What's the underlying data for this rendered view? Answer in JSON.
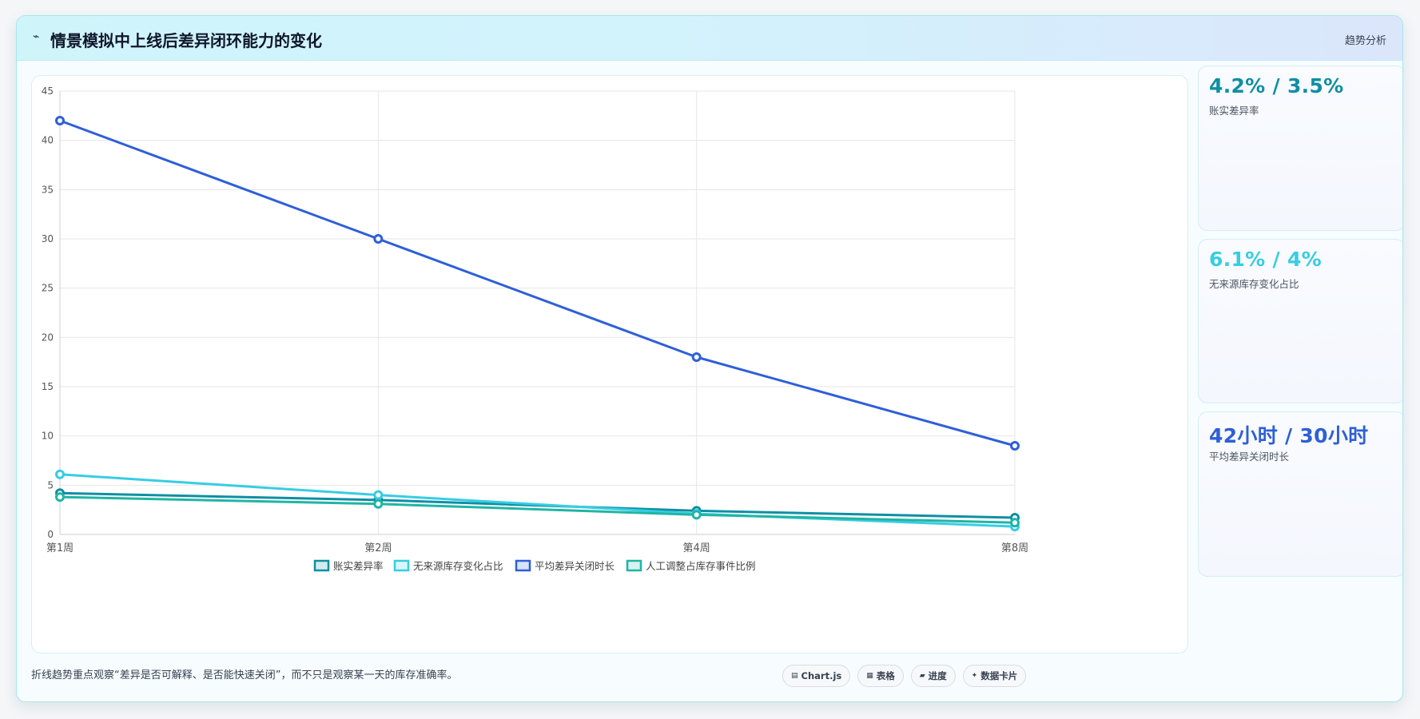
{
  "header": {
    "icon": "trend-icon",
    "icon_glyph": "⌁",
    "title": "情景模拟中上线后差异闭环能力的变化",
    "tag": "趋势分析"
  },
  "chart_data": {
    "type": "line",
    "title": "",
    "xlabel": "",
    "ylabel": "",
    "categories": [
      "第1周",
      "第2周",
      "第4周",
      "第8周"
    ],
    "ylim": [
      0,
      45
    ],
    "yticks": [
      0,
      5,
      10,
      15,
      20,
      25,
      30,
      35,
      40,
      45
    ],
    "grid": true,
    "legend_position": "bottom",
    "series": [
      {
        "name": "账实差异率",
        "values": [
          4.2,
          3.5,
          2.4,
          1.7
        ],
        "color": "#0e8fa3"
      },
      {
        "name": "无来源库存变化占比",
        "values": [
          6.1,
          4.0,
          2.1,
          0.8
        ],
        "color": "#37cde3"
      },
      {
        "name": "平均差异关闭时长",
        "values": [
          42,
          30,
          18,
          9
        ],
        "color": "#2e5fd9"
      },
      {
        "name": "人工调整占库存事件比例",
        "values": [
          3.8,
          3.1,
          2.0,
          1.2
        ],
        "color": "#1fb5a5"
      }
    ]
  },
  "stats": [
    {
      "value": "4.2% / 3.5%",
      "label": "账实差异率",
      "color": "#0e8fa3"
    },
    {
      "value": "6.1% / 4%",
      "label": "无来源库存变化占比",
      "color": "#37cde3"
    },
    {
      "value": "42小时 / 30小时",
      "label": "平均差异关闭时长",
      "color": "#2e5fd9"
    }
  ],
  "footer": {
    "note": "折线趋势重点观察“差异是否可解释、是否能快速关闭”，而不只是观察某一天的库存准确率。",
    "chips": [
      {
        "icon": "chart-icon",
        "glyph": "▤",
        "label": "Chart.js"
      },
      {
        "icon": "table-icon",
        "glyph": "▦",
        "label": "表格"
      },
      {
        "icon": "progress-icon",
        "glyph": "▰",
        "label": "进度"
      },
      {
        "icon": "sparkle-icon",
        "glyph": "✦",
        "label": "数据卡片"
      }
    ]
  }
}
